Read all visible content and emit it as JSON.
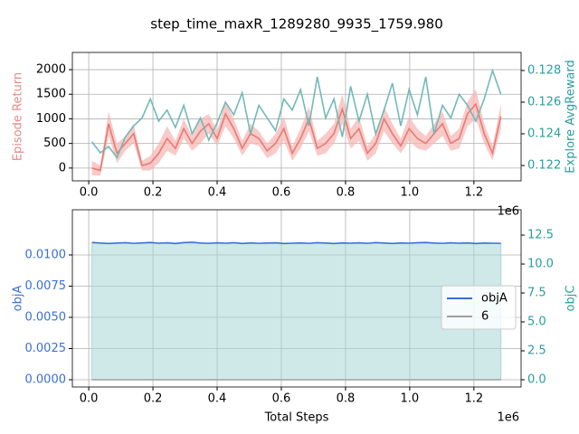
{
  "chart_data": [
    {
      "type": "line",
      "title": "step_time_maxR_1289280_9935_1759.980",
      "ylabel": "Episode Return",
      "ylabel_color": "#e88a85",
      "ytick_color": "#000000",
      "y2label": "Explore AvgReward",
      "y2label_color": "#2a9d9d",
      "y2tick_color": "#2a9d9d",
      "x_offset": "1e6",
      "grid": true,
      "xlim": [
        -0.051,
        1.347
      ],
      "xticks": [
        {
          "value": 0,
          "label": "0.0"
        },
        0.2,
        0.4,
        0.6,
        0.8,
        {
          "value": 1,
          "label": "1.0"
        },
        1.2
      ],
      "ylim": [
        -260,
        2350
      ],
      "yticks": [
        0,
        500,
        1000,
        1500,
        2000
      ],
      "y2lim": [
        0.12103,
        0.12914
      ],
      "y2ticks": [
        0.122,
        0.124,
        0.126,
        0.128
      ],
      "x": [
        0.01,
        0.036,
        0.062,
        0.088,
        0.114,
        0.14,
        0.166,
        0.192,
        0.218,
        0.244,
        0.27,
        0.296,
        0.322,
        0.348,
        0.374,
        0.4,
        0.426,
        0.452,
        0.478,
        0.504,
        0.53,
        0.556,
        0.582,
        0.608,
        0.634,
        0.66,
        0.686,
        0.712,
        0.738,
        0.764,
        0.79,
        0.816,
        0.842,
        0.868,
        0.894,
        0.92,
        0.946,
        0.972,
        0.998,
        1.024,
        1.05,
        1.076,
        1.102,
        1.128,
        1.154,
        1.18,
        1.206,
        1.232,
        1.258,
        1.284
      ],
      "series": [
        {
          "color": "#e87a74",
          "band_color": "#f6b8b5",
          "values": [
            0,
            -50,
            900,
            300,
            500,
            700,
            50,
            100,
            300,
            600,
            400,
            800,
            500,
            750,
            900,
            600,
            1100,
            800,
            400,
            700,
            600,
            350,
            500,
            800,
            300,
            600,
            1000,
            400,
            500,
            700,
            1200,
            600,
            800,
            300,
            500,
            1000,
            700,
            450,
            800,
            600,
            500,
            700,
            900,
            500,
            600,
            1100,
            1300,
            700,
            300,
            1050
          ],
          "errors": [
            150,
            100,
            250,
            200,
            150,
            200,
            100,
            150,
            200,
            250,
            150,
            200,
            150,
            250,
            200,
            150,
            250,
            200,
            150,
            200,
            150,
            150,
            200,
            250,
            150,
            200,
            250,
            150,
            200,
            200,
            300,
            200,
            250,
            150,
            200,
            250,
            200,
            150,
            250,
            200,
            150,
            200,
            250,
            150,
            200,
            250,
            300,
            200,
            150,
            250
          ]
        },
        {
          "color": "#72b9b9",
          "axis": "y2",
          "values": [
            0.1235,
            0.1228,
            0.1232,
            0.1225,
            0.1238,
            0.1245,
            0.125,
            0.1262,
            0.1248,
            0.1255,
            0.1244,
            0.1258,
            0.124,
            0.125,
            0.1236,
            0.1247,
            0.126,
            0.1252,
            0.1266,
            0.124,
            0.1258,
            0.125,
            0.1242,
            0.1262,
            0.1255,
            0.1268,
            0.1245,
            0.1276,
            0.125,
            0.1262,
            0.1238,
            0.127,
            0.1248,
            0.1265,
            0.124,
            0.1255,
            0.1272,
            0.1245,
            0.1268,
            0.1252,
            0.1276,
            0.124,
            0.1258,
            0.125,
            0.1265,
            0.1258,
            0.1248,
            0.1262,
            0.128,
            0.1265
          ]
        }
      ]
    },
    {
      "type": "line",
      "xlabel": "Total Steps",
      "ylabel": "objA",
      "ylabel_color": "#3a6fd8",
      "ytick_color": "#3a6fd8",
      "y2label": "objC",
      "y2label_color": "#2a9d9d",
      "y2tick_color": "#2a9d9d",
      "x_offset": "1e6",
      "grid": true,
      "legend": "center right",
      "xlim": [
        -0.051,
        1.347
      ],
      "xticks": [
        {
          "value": 0,
          "label": "0.0"
        },
        0.2,
        0.4,
        0.6,
        0.8,
        {
          "value": 1,
          "label": "1.0"
        },
        1.2
      ],
      "ylim": [
        -0.00058,
        0.01362
      ],
      "yticks": [
        {
          "value": 0,
          "label": "0.0000"
        },
        {
          "value": 0.0025,
          "label": "0.0025"
        },
        {
          "value": 0.005,
          "label": "0.0050"
        },
        {
          "value": 0.0075,
          "label": "0.0075"
        },
        {
          "value": 0.01,
          "label": "0.0100"
        }
      ],
      "y2lim": [
        -0.625,
        14.69
      ],
      "y2ticks": [
        {
          "value": 0,
          "label": "0.0"
        },
        2.5,
        {
          "value": 5,
          "label": "5.0"
        },
        7.5,
        {
          "value": 10,
          "label": "10.0"
        },
        12.5
      ],
      "x": [
        0.01,
        0.036,
        0.062,
        0.088,
        0.114,
        0.14,
        0.166,
        0.192,
        0.218,
        0.244,
        0.27,
        0.296,
        0.322,
        0.348,
        0.374,
        0.4,
        0.426,
        0.452,
        0.478,
        0.504,
        0.53,
        0.556,
        0.582,
        0.608,
        0.634,
        0.66,
        0.686,
        0.712,
        0.738,
        0.764,
        0.79,
        0.816,
        0.842,
        0.868,
        0.894,
        0.92,
        0.946,
        0.972,
        0.998,
        1.024,
        1.05,
        1.076,
        1.102,
        1.128,
        1.154,
        1.18,
        1.206,
        1.232,
        1.258,
        1.284
      ],
      "series": [
        {
          "color": "#a8d6d6",
          "axis": "y2",
          "fill": true,
          "values": [
            11.8,
            11.8,
            11.8,
            11.8,
            11.8,
            11.8,
            11.8,
            11.8,
            11.8,
            11.8,
            11.8,
            11.8,
            11.8,
            11.8,
            11.8,
            11.8,
            11.8,
            11.8,
            11.8,
            11.8,
            11.8,
            11.8,
            11.8,
            11.8,
            11.8,
            11.8,
            11.8,
            11.8,
            11.8,
            11.8,
            11.8,
            11.8,
            11.8,
            11.8,
            11.8,
            11.8,
            11.8,
            11.8,
            11.8,
            11.8,
            11.8,
            11.8,
            11.8,
            11.8,
            11.8,
            11.8,
            11.8,
            11.8,
            11.8,
            11.8
          ]
        },
        {
          "name": "objA",
          "color": "#3a6fd8",
          "values": [
            0.011,
            0.01095,
            0.01092,
            0.01095,
            0.01098,
            0.01093,
            0.01096,
            0.011,
            0.01094,
            0.01097,
            0.01092,
            0.01099,
            0.01102,
            0.01095,
            0.01093,
            0.01097,
            0.01094,
            0.01098,
            0.01092,
            0.01096,
            0.01093,
            0.01095,
            0.01097,
            0.01092,
            0.01094,
            0.01096,
            0.01093,
            0.01098,
            0.01095,
            0.01092,
            0.01096,
            0.01094,
            0.01097,
            0.01093,
            0.01099,
            0.01095,
            0.01092,
            0.01096,
            0.01094,
            0.01098,
            0.011,
            0.01095,
            0.01093,
            0.01097,
            0.01094,
            0.01096,
            0.01092,
            0.01095,
            0.01094,
            0.01093
          ]
        },
        {
          "name": "6",
          "color": "#a0a0a0",
          "values": [
            0,
            0,
            0,
            0,
            0,
            0,
            0,
            0,
            0,
            0,
            0,
            0,
            0,
            0,
            0,
            0,
            0,
            0,
            0,
            0,
            0,
            0,
            0,
            0,
            0,
            0,
            0,
            0,
            0,
            0,
            0,
            0,
            0,
            0,
            0,
            0,
            0,
            0,
            0,
            0,
            0,
            0,
            0,
            0,
            0,
            0,
            0,
            0,
            0,
            0
          ]
        }
      ]
    }
  ]
}
